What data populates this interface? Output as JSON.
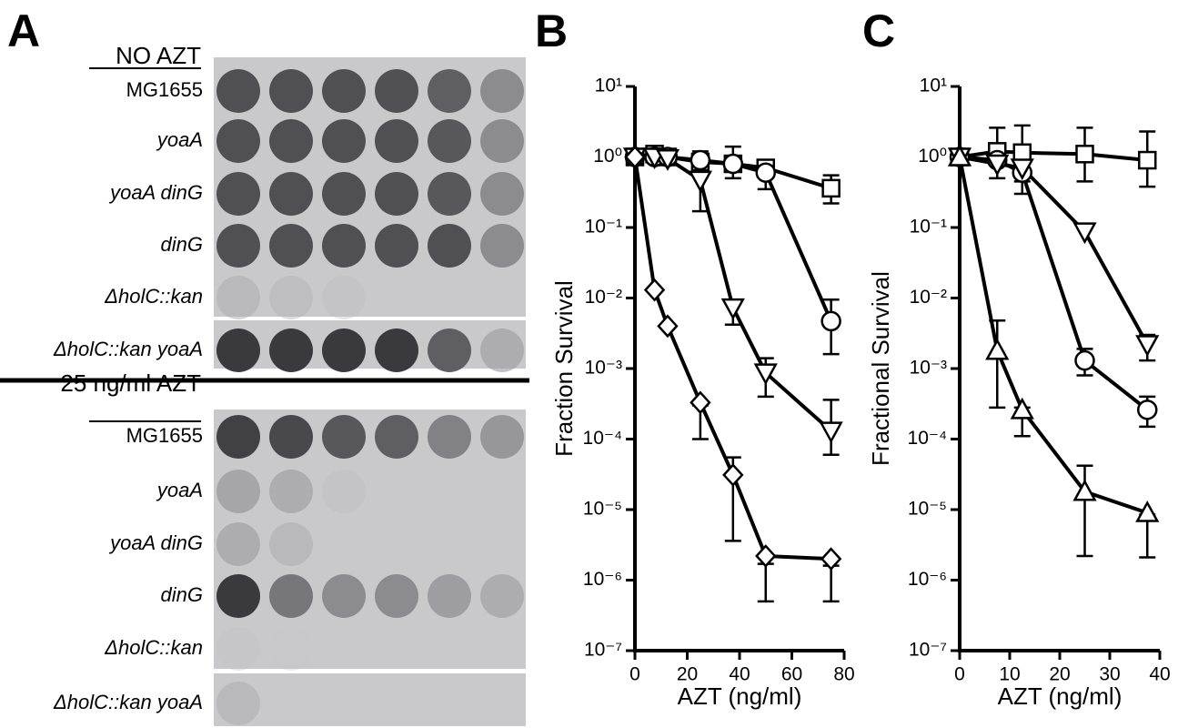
{
  "panel_a": {
    "label": "A",
    "sections": [
      {
        "title": "NO AZT",
        "strains": [
          "MG1655",
          "yoaA",
          "yoaA dinG",
          "dinG",
          "ΔholC::kan",
          "ΔholC::kan yoaA"
        ]
      },
      {
        "title": "25 ng/ml AZT",
        "strains": [
          "MG1655",
          "yoaA",
          "yoaA dinG",
          "dinG",
          "ΔholC::kan",
          "ΔholC::kan yoaA"
        ]
      }
    ]
  },
  "chart_data": [
    {
      "type": "line",
      "panel_label": "B",
      "y_label": "Fraction Survival",
      "x_label": "AZT (ng/ml)",
      "log_y": true,
      "xlim": [
        0,
        80
      ],
      "xticks": [
        0,
        20,
        40,
        60,
        80
      ],
      "ylim": [
        1e-07,
        10
      ],
      "yticks": [
        {
          "value": 1e-07,
          "label": "10⁻⁷"
        },
        {
          "value": 1e-06,
          "label": "10⁻⁶"
        },
        {
          "value": 1e-05,
          "label": "10⁻⁵"
        },
        {
          "value": 0.0001,
          "label": "10⁻⁴"
        },
        {
          "value": 0.001,
          "label": "10⁻³"
        },
        {
          "value": 0.01,
          "label": "10⁻²"
        },
        {
          "value": 0.1,
          "label": "10⁻¹"
        },
        {
          "value": 1,
          "label": "10⁰"
        },
        {
          "value": 10,
          "label": "10¹"
        }
      ],
      "series": [
        {
          "marker": "square",
          "color": "#000000",
          "x": [
            0,
            7.5,
            12.5,
            25,
            37.5,
            50,
            75
          ],
          "values": [
            1,
            1.1,
            1.0,
            0.85,
            0.8,
            0.7,
            0.36
          ],
          "err_lo": [
            null,
            null,
            null,
            0.6,
            0.5,
            null,
            0.22
          ],
          "err_hi": [
            null,
            null,
            null,
            1.2,
            1.4,
            null,
            0.55
          ]
        },
        {
          "marker": "circle",
          "color": "#000000",
          "x": [
            0,
            7.5,
            12.5,
            25,
            37.5,
            50,
            75
          ],
          "values": [
            1,
            1.0,
            1.0,
            0.9,
            0.8,
            0.6,
            0.0047
          ],
          "err_lo": [
            null,
            null,
            null,
            null,
            null,
            0.35,
            0.0016
          ],
          "err_hi": [
            null,
            null,
            null,
            null,
            null,
            0.9,
            0.0095
          ]
        },
        {
          "marker": "triangle-down",
          "color": "#000000",
          "x": [
            0,
            7.5,
            12.5,
            25,
            37.5,
            50,
            75
          ],
          "values": [
            1,
            1.0,
            0.95,
            0.47,
            0.0073,
            0.00087,
            0.00013
          ],
          "err_lo": [
            null,
            null,
            null,
            0.17,
            0.0042,
            0.0004,
            6e-05
          ],
          "err_hi": [
            null,
            null,
            null,
            0.8,
            0.009,
            0.0014,
            0.00036
          ]
        },
        {
          "marker": "diamond",
          "color": "#000000",
          "x": [
            0,
            7.5,
            12.5,
            25,
            37.5,
            50,
            75
          ],
          "values": [
            1,
            0.013,
            0.004,
            0.00033,
            3.1e-05,
            2.2e-06,
            2e-06
          ],
          "err_lo": [
            null,
            null,
            null,
            0.0001,
            3.6e-06,
            5e-07,
            5e-07
          ],
          "err_hi": [
            null,
            null,
            null,
            0.0003,
            5.5e-05,
            1.7e-06,
            1.6e-06
          ]
        }
      ]
    },
    {
      "type": "line",
      "panel_label": "C",
      "y_label": "Fractional Survival",
      "x_label": "AZT (ng/ml)",
      "log_y": true,
      "xlim": [
        0,
        40
      ],
      "xticks": [
        0,
        10,
        20,
        30,
        40
      ],
      "ylim": [
        1e-07,
        10
      ],
      "yticks": [
        {
          "value": 1e-07,
          "label": "10⁻⁷"
        },
        {
          "value": 1e-06,
          "label": "10⁻⁶"
        },
        {
          "value": 1e-05,
          "label": "10⁻⁵"
        },
        {
          "value": 0.0001,
          "label": "10⁻⁴"
        },
        {
          "value": 0.001,
          "label": "10⁻³"
        },
        {
          "value": 0.01,
          "label": "10⁻²"
        },
        {
          "value": 0.1,
          "label": "10⁻¹"
        },
        {
          "value": 1,
          "label": "10⁰"
        },
        {
          "value": 10,
          "label": "10¹"
        }
      ],
      "series": [
        {
          "marker": "square",
          "color": "#000000",
          "x": [
            0,
            7.5,
            12.5,
            25,
            37.5
          ],
          "values": [
            1,
            1.2,
            1.15,
            1.1,
            0.9
          ],
          "err_lo": [
            null,
            0.5,
            0.45,
            0.45,
            0.38
          ],
          "err_hi": [
            null,
            2.6,
            2.8,
            2.6,
            2.3
          ]
        },
        {
          "marker": "circle",
          "color": "#000000",
          "x": [
            0,
            7.5,
            12.5,
            25,
            37.5
          ],
          "values": [
            1,
            0.9,
            0.6,
            0.0013,
            0.00026
          ],
          "err_lo": [
            null,
            null,
            0.3,
            0.0008,
            0.00015
          ],
          "err_hi": [
            null,
            null,
            1.5,
            0.0019,
            0.0004
          ]
        },
        {
          "marker": "triangle-down",
          "color": "#000000",
          "x": [
            0,
            7.5,
            12.5,
            25,
            37.5
          ],
          "values": [
            1,
            0.8,
            0.7,
            0.087,
            0.0022
          ],
          "err_lo": [
            null,
            null,
            null,
            null,
            0.0013
          ],
          "err_hi": [
            null,
            null,
            null,
            null,
            0.003
          ]
        },
        {
          "marker": "triangle-up",
          "color": "#000000",
          "x": [
            0,
            7.5,
            12.5,
            25,
            37.5
          ],
          "values": [
            1,
            0.0018,
            0.00026,
            1.8e-05,
            9e-06
          ],
          "err_lo": [
            null,
            0.00028,
            0.00011,
            2.2e-06,
            2.1e-06
          ],
          "err_hi": [
            null,
            0.0048,
            0.00028,
            4.2e-05,
            8.5e-06
          ]
        }
      ]
    }
  ]
}
